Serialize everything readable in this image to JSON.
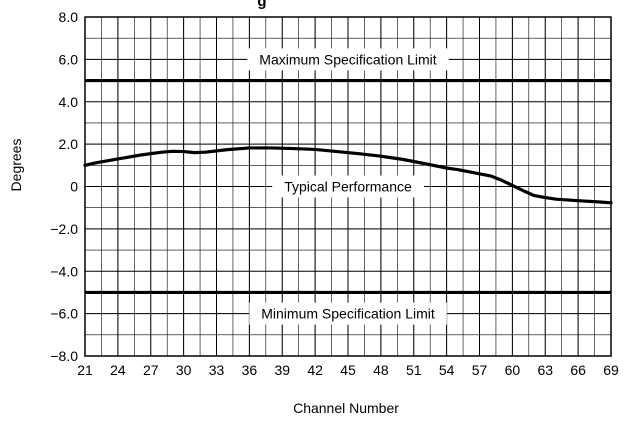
{
  "chart_data": {
    "type": "line",
    "title": "",
    "title_visible_fragment": "g",
    "xlabel": "Channel Number",
    "ylabel": "Degrees",
    "xlim": [
      21,
      69
    ],
    "ylim": [
      -8,
      8
    ],
    "x_ticks": [
      21,
      24,
      27,
      30,
      33,
      36,
      39,
      42,
      45,
      48,
      51,
      54,
      57,
      60,
      63,
      66,
      69
    ],
    "y_ticks": [
      -8,
      -6,
      -4,
      -2,
      0,
      2,
      4,
      6,
      8
    ],
    "y_tick_labels": [
      "−8.0",
      "−6.0",
      "−4.0",
      "−2.0",
      "0",
      "2.0",
      "4.0",
      "6.0",
      "8.0"
    ],
    "x_minor_step": 1.5,
    "y_minor_step": 1,
    "grid": true,
    "series": [
      {
        "x": [
          21,
          22,
          24,
          26,
          28,
          29,
          30,
          31,
          32,
          34,
          36,
          38,
          40,
          42,
          44,
          46,
          48,
          50,
          52,
          54,
          55,
          56,
          58,
          59,
          60,
          61,
          62,
          63,
          64,
          66,
          68,
          69
        ],
        "values": [
          1.0,
          1.12,
          1.3,
          1.48,
          1.62,
          1.66,
          1.65,
          1.6,
          1.62,
          1.74,
          1.82,
          1.82,
          1.79,
          1.75,
          1.65,
          1.55,
          1.43,
          1.28,
          1.08,
          0.87,
          0.8,
          0.7,
          0.5,
          0.3,
          0.05,
          -0.2,
          -0.43,
          -0.52,
          -0.6,
          -0.67,
          -0.73,
          -0.77
        ],
        "color": "#000000"
      }
    ],
    "annotations": [
      {
        "text": "Maximum Specification Limit",
        "x": 45,
        "y": 6.0,
        "line_y": 5.0
      },
      {
        "text": "Typical Performance",
        "x": 45,
        "y": 0
      },
      {
        "text": "Minimum Specification Limit",
        "x": 45,
        "y": -6.0,
        "line_y": -5.0
      }
    ]
  }
}
